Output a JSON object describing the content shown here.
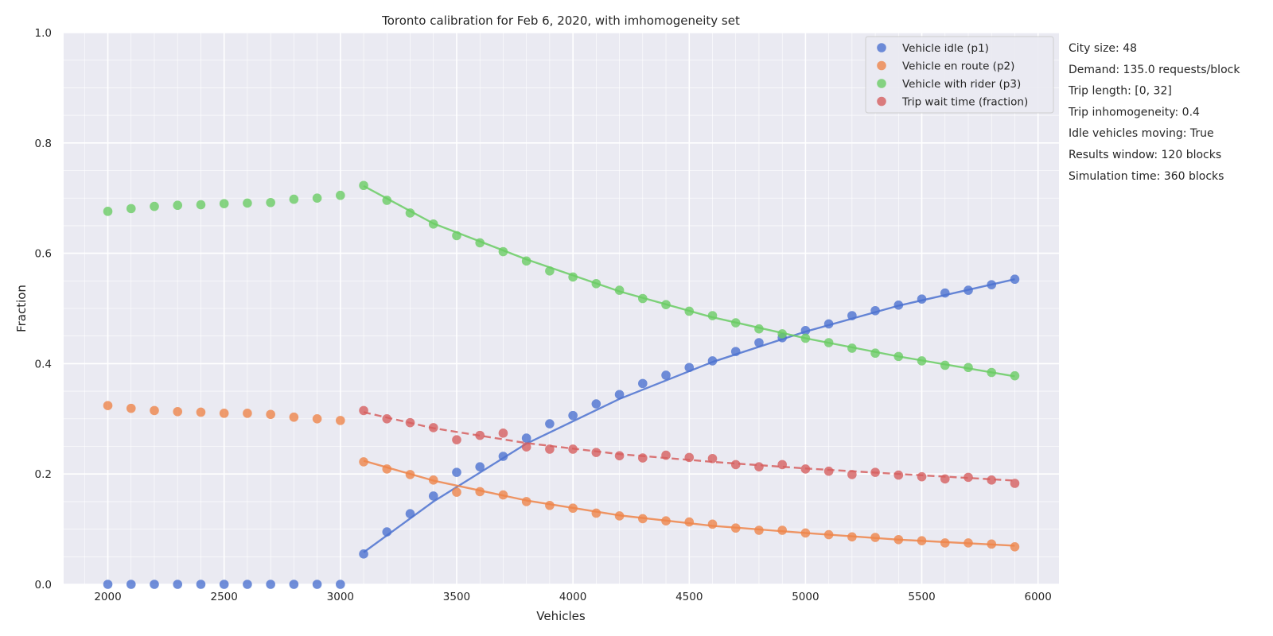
{
  "chart_data": {
    "type": "scatter",
    "title": "Toronto calibration for Feb 6, 2020, with imhomogeneity set",
    "xlabel": "Vehicles",
    "ylabel": "Fraction",
    "xlim": [
      1810,
      6090
    ],
    "ylim": [
      0,
      1
    ],
    "xticks": [
      2000,
      2500,
      3000,
      3500,
      4000,
      4500,
      5000,
      5500,
      6000
    ],
    "yticks": [
      0.0,
      0.2,
      0.4,
      0.6,
      0.8,
      1.0
    ],
    "ytick_labels": [
      "0.0",
      "0.2",
      "0.4",
      "0.6",
      "0.8",
      "1.0"
    ],
    "grid": true,
    "legend_position": "top-right",
    "x": [
      2000,
      2100,
      2200,
      2300,
      2400,
      2500,
      2600,
      2700,
      2800,
      2900,
      3000,
      3100,
      3200,
      3300,
      3400,
      3500,
      3600,
      3700,
      3800,
      3900,
      4000,
      4100,
      4200,
      4300,
      4400,
      4500,
      4600,
      4700,
      4800,
      4900,
      5000,
      5100,
      5200,
      5300,
      5400,
      5500,
      5600,
      5700,
      5800,
      5900
    ],
    "series": [
      {
        "name": "Vehicle idle (p1)",
        "color": "#4c72d0",
        "values": [
          0,
          0,
          0,
          0,
          0,
          0,
          0,
          0,
          0,
          0,
          0,
          0.055,
          0.095,
          0.128,
          0.16,
          0.203,
          0.213,
          0.232,
          0.265,
          0.291,
          0.306,
          0.327,
          0.344,
          0.364,
          0.379,
          0.393,
          0.405,
          0.422,
          0.438,
          0.447,
          0.46,
          0.472,
          0.487,
          0.496,
          0.506,
          0.517,
          0.528,
          0.533,
          0.543,
          0.553
        ],
        "fit": {
          "x": [
            3100,
            3400,
            3800,
            4200,
            4600,
            5000,
            5400,
            5900
          ],
          "y": [
            0.058,
            0.15,
            0.255,
            0.336,
            0.403,
            0.458,
            0.505,
            0.553
          ],
          "dash": false
        }
      },
      {
        "name": "Vehicle en route (p2)",
        "color": "#ee854a",
        "values": [
          0.324,
          0.319,
          0.315,
          0.313,
          0.312,
          0.31,
          0.31,
          0.308,
          0.303,
          0.3,
          0.297,
          0.222,
          0.209,
          0.199,
          0.189,
          0.167,
          0.168,
          0.162,
          0.15,
          0.143,
          0.138,
          0.129,
          0.124,
          0.119,
          0.115,
          0.113,
          0.109,
          0.102,
          0.098,
          0.098,
          0.093,
          0.09,
          0.086,
          0.085,
          0.081,
          0.079,
          0.075,
          0.075,
          0.073,
          0.068
        ],
        "fit": {
          "x": [
            3100,
            3400,
            3800,
            4200,
            4600,
            5000,
            5400,
            5900
          ],
          "y": [
            0.224,
            0.188,
            0.152,
            0.125,
            0.106,
            0.093,
            0.081,
            0.07
          ],
          "dash": false
        }
      },
      {
        "name": "Vehicle with rider (p3)",
        "color": "#6acc64",
        "values": [
          0.676,
          0.681,
          0.685,
          0.687,
          0.688,
          0.69,
          0.691,
          0.692,
          0.698,
          0.7,
          0.705,
          0.723,
          0.696,
          0.673,
          0.653,
          0.632,
          0.619,
          0.603,
          0.586,
          0.568,
          0.557,
          0.545,
          0.533,
          0.518,
          0.507,
          0.495,
          0.487,
          0.474,
          0.463,
          0.454,
          0.446,
          0.438,
          0.428,
          0.419,
          0.413,
          0.405,
          0.397,
          0.393,
          0.384,
          0.378
        ],
        "fit": {
          "x": [
            3100,
            3400,
            3800,
            4200,
            4600,
            5000,
            5400,
            5900
          ],
          "y": [
            0.722,
            0.654,
            0.589,
            0.531,
            0.484,
            0.446,
            0.413,
            0.377
          ],
          "dash": false
        }
      },
      {
        "name": "Trip wait time (fraction)",
        "color": "#d65f5f",
        "values": [
          null,
          null,
          null,
          null,
          null,
          null,
          null,
          null,
          null,
          null,
          null,
          0.315,
          0.3,
          0.293,
          0.284,
          0.262,
          0.27,
          0.274,
          0.249,
          0.245,
          0.245,
          0.239,
          0.233,
          0.229,
          0.234,
          0.23,
          0.228,
          0.217,
          0.213,
          0.217,
          0.209,
          0.205,
          0.199,
          0.203,
          0.198,
          0.195,
          0.191,
          0.194,
          0.189,
          0.183
        ],
        "fit": {
          "x": [
            3100,
            3400,
            3800,
            4200,
            4600,
            5000,
            5400,
            5900
          ],
          "y": [
            0.312,
            0.283,
            0.256,
            0.236,
            0.222,
            0.21,
            0.2,
            0.188
          ],
          "dash": true
        }
      }
    ]
  },
  "info": [
    "City size: 48",
    "Demand: 135.0 requests/block",
    "Trip length: [0, 32]",
    "Trip inhomogeneity: 0.4",
    "Idle vehicles moving: True",
    "Results window: 120 blocks",
    "Simulation time: 360 blocks"
  ]
}
